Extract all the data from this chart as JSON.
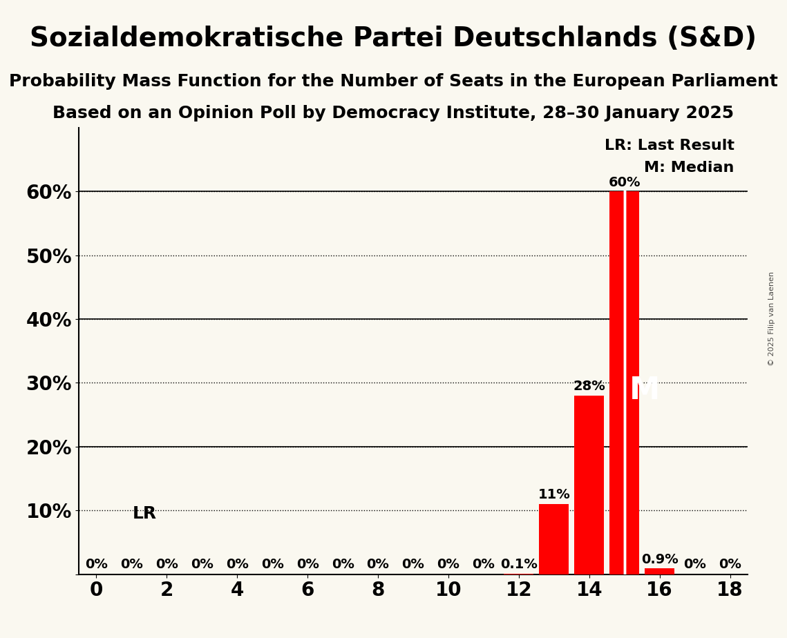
{
  "title": "Sozialdemokratische Partei Deutschlands (S&D)",
  "subtitle1": "Probability Mass Function for the Number of Seats in the European Parliament",
  "subtitle2": "Based on an Opinion Poll by Democracy Institute, 28–30 January 2025",
  "copyright": "© 2025 Filip van Laenen",
  "background_color": "#faf8f0",
  "bar_color": "#ff0000",
  "seats": [
    0,
    1,
    2,
    3,
    4,
    5,
    6,
    7,
    8,
    9,
    10,
    11,
    12,
    13,
    14,
    15,
    16,
    17,
    18
  ],
  "probabilities": [
    0.0,
    0.0,
    0.0,
    0.0,
    0.0,
    0.0,
    0.0,
    0.0,
    0.0,
    0.0,
    0.0,
    0.0,
    0.001,
    0.11,
    0.28,
    0.6,
    0.009,
    0.0,
    0.0
  ],
  "labels": [
    "0%",
    "0%",
    "0%",
    "0%",
    "0%",
    "0%",
    "0%",
    "0%",
    "0%",
    "0%",
    "0%",
    "0%",
    "0.1%",
    "11%",
    "28%",
    "60%",
    "0.9%",
    "0%",
    "0%"
  ],
  "last_result_seat": 15,
  "median_seat": 15,
  "ylim": [
    0,
    0.7
  ],
  "yticks": [
    0.0,
    0.1,
    0.2,
    0.3,
    0.4,
    0.5,
    0.6
  ],
  "ytick_labels": [
    "",
    "10%",
    "20%",
    "30%",
    "40%",
    "50%",
    "60%"
  ],
  "xlim": [
    -0.5,
    18.5
  ],
  "xticks": [
    0,
    2,
    4,
    6,
    8,
    10,
    12,
    14,
    16,
    18
  ],
  "legend_lr": "LR: Last Result",
  "legend_m": "M: Median",
  "lr_label": "LR",
  "m_label": "M",
  "title_fontsize": 28,
  "subtitle_fontsize": 18,
  "axis_label_fontsize": 20,
  "bar_label_fontsize": 14,
  "legend_fontsize": 16
}
